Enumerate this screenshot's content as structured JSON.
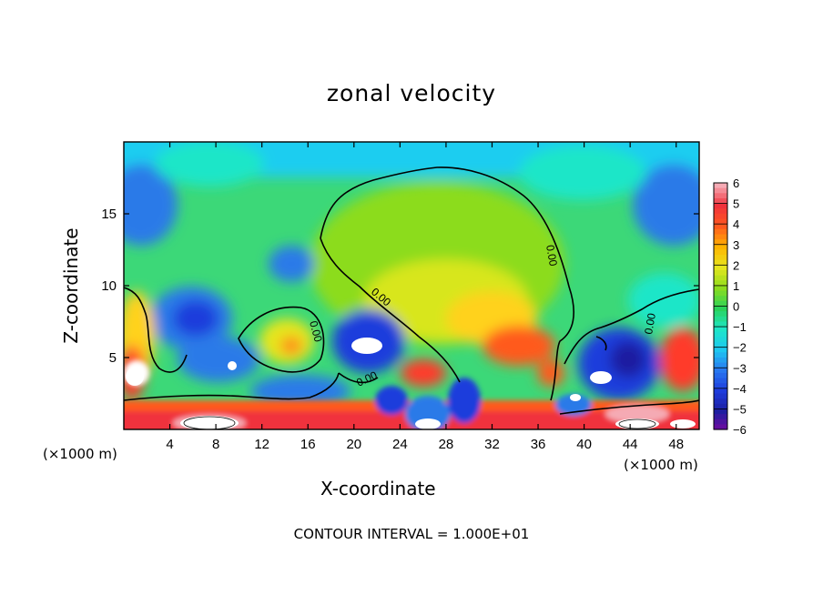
{
  "chart_data": {
    "type": "heatmap",
    "title": "zonal velocity",
    "xlabel": "X-coordinate",
    "ylabel": "Z-coordinate",
    "x_unit": "(×1000 m)",
    "y_unit": "(×1000 m)",
    "x_ticks": [
      4,
      8,
      12,
      16,
      20,
      24,
      28,
      32,
      36,
      40,
      44,
      48
    ],
    "y_ticks": [
      5,
      10,
      15
    ],
    "xlim": [
      0,
      50
    ],
    "ylim": [
      0,
      20
    ],
    "colorbar_ticks": [
      6,
      5,
      4,
      3,
      2,
      1,
      0,
      -1,
      -2,
      -3,
      -4,
      -5,
      -6
    ],
    "colorbar_range": [
      -6,
      6
    ],
    "contour_labels": [
      "0.00",
      "0.00",
      "0.00",
      "0.00",
      "0.00"
    ],
    "footer": "CONTOUR INTERVAL = 1.000E+01",
    "colors": {
      "neg6": "#7a0aa0",
      "neg5": "#1e1ea0",
      "neg4": "#1e3cdc",
      "neg3": "#2878f0",
      "neg2": "#1ec8f0",
      "neg1": "#1ee6c8",
      "zero": "#2ad25a",
      "pos1": "#8cdc1e",
      "pos2": "#e6e61e",
      "pos3": "#ffb400",
      "pos4": "#ff5a1e",
      "pos5": "#f0323c",
      "pos6": "#f5aab4"
    }
  }
}
